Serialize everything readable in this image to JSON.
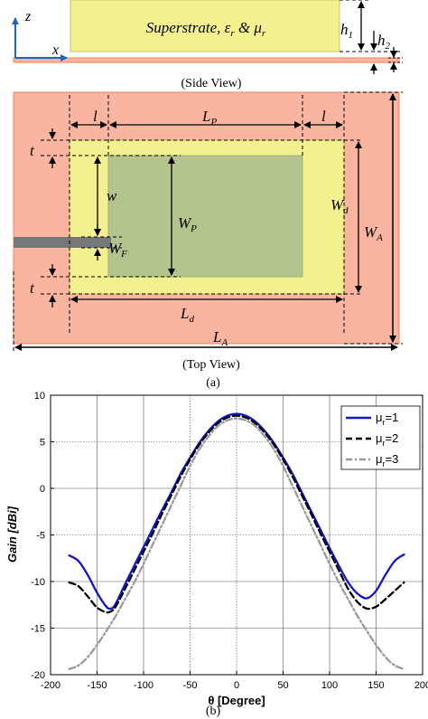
{
  "colors": {
    "substrate": "#f9b59f",
    "substrate_edge": "#e8845f",
    "superstrate": "#f3f18f",
    "superstrate_edge": "#c9c85a",
    "patch": "#b3c48c",
    "feed": "#777777",
    "axis_blue": "#1f63c2",
    "series_1": "#1414c8",
    "series_2": "#000000",
    "series_3": "#9a9a9a"
  },
  "side_view": {
    "superstrate_text": "Superstrate, ε",
    "superstrate_sub_r": "r",
    "superstrate_mid": " & μ",
    "superstrate_sub_r2": "r",
    "h1_main": "h",
    "h1_sub": "1",
    "h2_main": "h",
    "h2_sub": "2",
    "axis_z": "z",
    "axis_x": "x",
    "caption": "(Side View)"
  },
  "top_view": {
    "l_left": "l",
    "l_right": "l",
    "LP_main": "L",
    "LP_sub": "P",
    "t_top": "t",
    "t_bottom": "t",
    "w": "w",
    "WP_main": "W",
    "WP_sub": "P",
    "Wd_main": "W",
    "Wd_sub": "d",
    "WA_main": "W",
    "WA_sub": "A",
    "WF_main": "W",
    "WF_sub": "F",
    "Ld_main": "L",
    "Ld_sub": "d",
    "LA_main": "L",
    "LA_sub": "A",
    "caption": "(Top View)"
  },
  "label_a": "(a)",
  "label_b": "(b)",
  "chart_data": {
    "type": "line",
    "xlabel": "θ [Degree]",
    "ylabel": "Gain [dBi]",
    "xlim": [
      -200,
      200
    ],
    "ylim": [
      -20,
      10
    ],
    "xticks": [
      -200,
      -150,
      -100,
      -50,
      0,
      50,
      100,
      150,
      200
    ],
    "yticks": [
      -20,
      -15,
      -10,
      -5,
      0,
      5,
      10
    ],
    "legend_position": "top-right",
    "series": [
      {
        "name": "μr=1",
        "legend_main": "μ",
        "legend_sub": "r",
        "legend_value": "=1",
        "style": "solid",
        "x": [
          -180,
          -170,
          -160,
          -150,
          -140,
          -135,
          -130,
          -120,
          -110,
          -100,
          -90,
          -80,
          -70,
          -60,
          -50,
          -40,
          -30,
          -20,
          -10,
          0,
          10,
          20,
          30,
          40,
          50,
          60,
          70,
          80,
          90,
          100,
          110,
          120,
          130,
          140,
          150,
          160,
          170,
          180
        ],
        "y": [
          -7.2,
          -7.8,
          -9.3,
          -11.2,
          -12.7,
          -12.9,
          -12.4,
          -10.3,
          -8.3,
          -6.3,
          -4.3,
          -2.3,
          -0.4,
          1.6,
          3.3,
          4.9,
          6.2,
          7.2,
          7.8,
          8.0,
          7.8,
          7.2,
          6.2,
          4.9,
          3.3,
          1.6,
          -0.4,
          -2.4,
          -4.4,
          -6.4,
          -8.3,
          -10.1,
          -11.3,
          -11.8,
          -11.0,
          -9.3,
          -7.8,
          -7.1
        ]
      },
      {
        "name": "μr=2",
        "legend_main": "μ",
        "legend_sub": "r",
        "legend_value": "=2",
        "style": "dashed",
        "x": [
          -180,
          -170,
          -160,
          -150,
          -140,
          -135,
          -130,
          -120,
          -110,
          -100,
          -90,
          -80,
          -70,
          -60,
          -50,
          -40,
          -30,
          -20,
          -10,
          0,
          10,
          20,
          30,
          40,
          50,
          60,
          70,
          80,
          90,
          100,
          110,
          120,
          130,
          140,
          150,
          160,
          170,
          180
        ],
        "y": [
          -10.1,
          -10.5,
          -11.6,
          -12.8,
          -13.3,
          -13.2,
          -12.7,
          -10.8,
          -8.8,
          -6.8,
          -4.8,
          -2.7,
          -0.7,
          1.3,
          3.1,
          4.7,
          6.0,
          7.0,
          7.6,
          7.8,
          7.6,
          7.0,
          6.0,
          4.7,
          3.1,
          1.3,
          -0.7,
          -2.7,
          -4.8,
          -6.8,
          -8.8,
          -10.8,
          -12.2,
          -12.9,
          -12.7,
          -11.9,
          -11.0,
          -10.1
        ]
      },
      {
        "name": "μr=3",
        "legend_main": "μ",
        "legend_sub": "r",
        "legend_value": "=3",
        "style": "dashdot",
        "x": [
          -180,
          -170,
          -160,
          -150,
          -140,
          -130,
          -120,
          -110,
          -100,
          -90,
          -80,
          -70,
          -60,
          -50,
          -40,
          -30,
          -20,
          -10,
          0,
          10,
          20,
          30,
          40,
          50,
          60,
          70,
          80,
          90,
          100,
          110,
          120,
          130,
          140,
          150,
          160,
          170,
          180
        ],
        "y": [
          -19.4,
          -19.0,
          -18.1,
          -16.8,
          -15.3,
          -13.7,
          -11.9,
          -10.1,
          -8.1,
          -6.0,
          -3.9,
          -1.8,
          0.3,
          2.4,
          4.2,
          5.6,
          6.7,
          7.3,
          7.5,
          7.3,
          6.7,
          5.6,
          4.2,
          2.4,
          0.3,
          -1.8,
          -3.9,
          -6.0,
          -8.1,
          -10.1,
          -11.9,
          -13.7,
          -15.3,
          -16.8,
          -18.1,
          -19.0,
          -19.4
        ]
      }
    ]
  }
}
